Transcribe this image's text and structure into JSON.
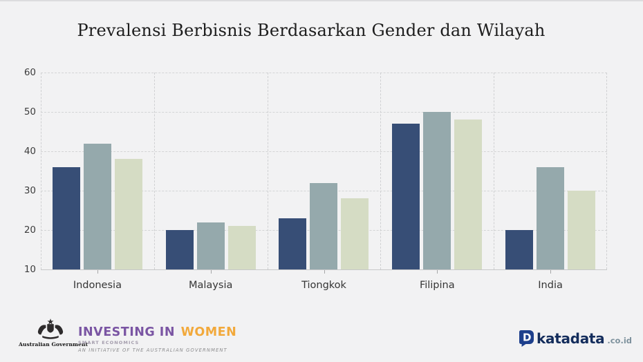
{
  "title": "Prevalensi Berbisnis Berdasarkan Gender dan Wilayah",
  "chart_data": {
    "type": "bar",
    "title": "Prevalensi Berbisnis Berdasarkan Gender dan Wilayah",
    "categories": [
      "Indonesia",
      "Malaysia",
      "Tiongkok",
      "Filipina",
      "India"
    ],
    "series": [
      {
        "name": "series-1-navy",
        "color": "#374e76",
        "values": [
          36,
          20,
          23,
          47,
          20
        ]
      },
      {
        "name": "series-2-gray-blue",
        "color": "#95a9ac",
        "values": [
          42,
          22,
          32,
          50,
          36
        ]
      },
      {
        "name": "series-3-sage",
        "color": "#d5dcc4",
        "values": [
          38,
          21,
          28,
          48,
          30
        ]
      }
    ],
    "xlabel": "",
    "ylabel": "",
    "ylim": [
      10,
      60
    ],
    "y_ticks": [
      60,
      50,
      40,
      30,
      20,
      10
    ],
    "grid": "dashed",
    "legend": "none"
  },
  "colors": {
    "background": "#f2f2f3",
    "grid": "#d3d4d5",
    "axis_text": "#3c3c3c",
    "title_text": "#1d1d1d"
  },
  "footer": {
    "aus_gov": {
      "label": "Australian Government"
    },
    "investing_in_women": {
      "title_part1": "INVESTING IN",
      "title_part2": "WOMEN",
      "subtitle": "SMART ECONOMICS",
      "tagline": "AN INITIATIVE OF THE AUSTRALIAN GOVERNMENT",
      "purple": "#7a55a3",
      "orange": "#f2a93b"
    },
    "katadata": {
      "brand": "katadata",
      "suffix": ".co.id",
      "icon_blue": "#1d3f8c",
      "text_navy": "#142d5c",
      "suffix_gray": "#7e929d"
    }
  }
}
